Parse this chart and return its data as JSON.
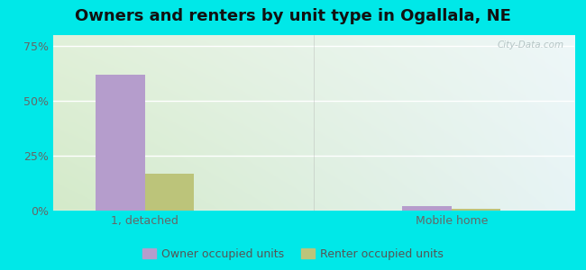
{
  "title": "Owners and renters by unit type in Ogallala, NE",
  "categories": [
    "1, detached",
    "Mobile home"
  ],
  "owner_values": [
    62,
    2
  ],
  "renter_values": [
    17,
    1
  ],
  "owner_color": "#b59dcc",
  "renter_color": "#bcc47a",
  "outer_bg": "#00e8e8",
  "yticks": [
    0,
    25,
    50,
    75
  ],
  "ytick_labels": [
    "0%",
    "25%",
    "50%",
    "75%"
  ],
  "ylim": [
    0,
    80
  ],
  "bar_width": 0.32,
  "legend_labels": [
    "Owner occupied units",
    "Renter occupied units"
  ],
  "watermark": "City-Data.com",
  "title_fontsize": 13,
  "tick_fontsize": 9,
  "legend_fontsize": 9
}
